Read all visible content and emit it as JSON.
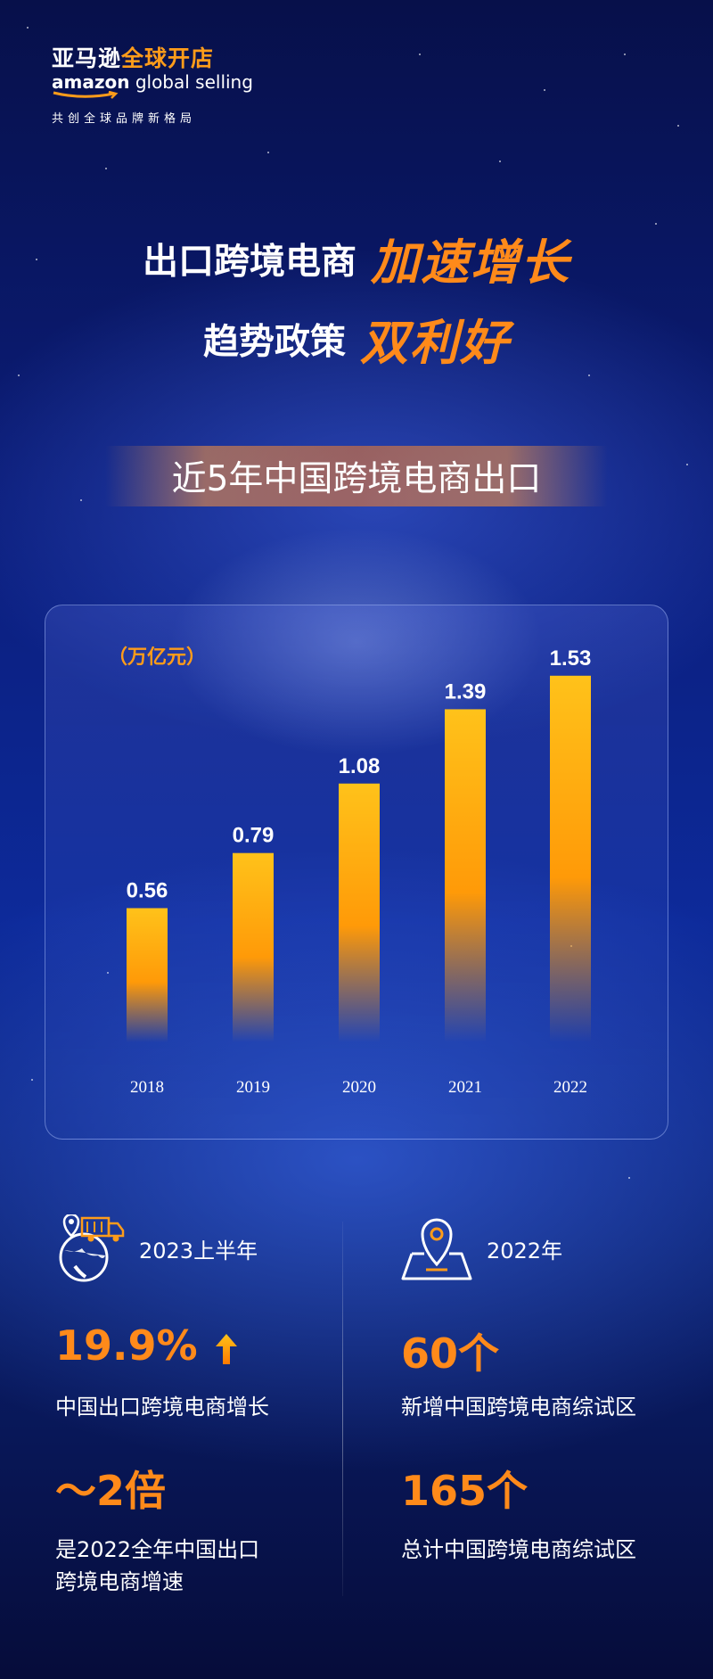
{
  "brand": {
    "logo_cn_white": "亚马逊",
    "logo_cn_orange": "全球开店",
    "logo_en_bold": "amazon",
    "logo_en_rest": "global selling",
    "tagline": "共创全球品牌新格局",
    "accent_color": "#ff8a1a"
  },
  "headline": {
    "line1_white": "出口跨境电商",
    "line1_orange": "加速增长",
    "line2_white": "趋势政策",
    "line2_orange": "双利好"
  },
  "banner": {
    "text": "近5年中国跨境电商出口"
  },
  "chart_data": {
    "type": "bar",
    "unit_label": "（万亿元）",
    "categories": [
      "2018",
      "2019",
      "2020",
      "2021",
      "2022"
    ],
    "values": [
      0.56,
      0.79,
      1.08,
      1.39,
      1.53
    ],
    "data_labels": [
      "0.56",
      "0.79",
      "1.08",
      "1.39",
      "1.53"
    ],
    "ylim": [
      0,
      1.6
    ],
    "grid": false,
    "bar_color_top": "#ffc21a",
    "bar_color_bottom": "#ff8a00"
  },
  "stats": {
    "left": {
      "icon": "globe-truck-icon",
      "period": "2023上半年",
      "item1_value": "19.9%",
      "item1_arrow": "up-arrow-icon",
      "item1_desc": "中国出口跨境电商增长",
      "item2_value": "～2倍",
      "item2_desc_line1": "是2022全年中国出口",
      "item2_desc_line2": "跨境电商增速"
    },
    "right": {
      "icon": "map-pin-icon",
      "period": "2022年",
      "item1_value": "60个",
      "item1_desc": "新增中国跨境电商综试区",
      "item2_value": "165个",
      "item2_desc": "总计中国跨境电商综试区"
    }
  }
}
